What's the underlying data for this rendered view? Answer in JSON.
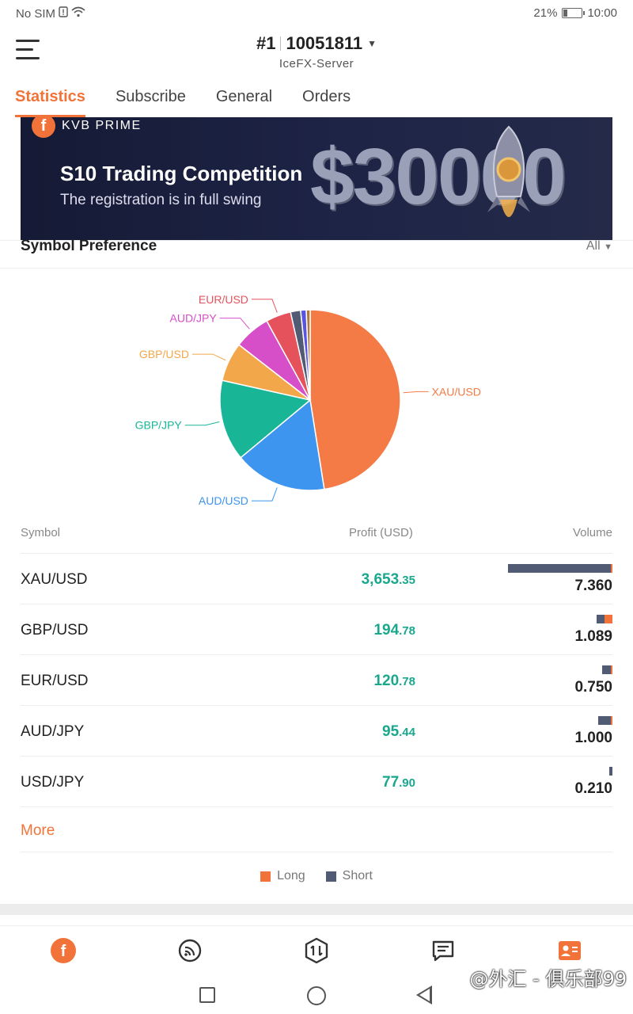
{
  "status_bar": {
    "carrier": "No SIM",
    "battery": "21%",
    "time": "10:00"
  },
  "header": {
    "rank": "#1",
    "account_id": "10051811",
    "server": "IceFX-Server"
  },
  "tabs": [
    {
      "label": "Statistics",
      "active": true
    },
    {
      "label": "Subscribe"
    },
    {
      "label": "General"
    },
    {
      "label": "Orders"
    }
  ],
  "banner": {
    "brand": "KVB PRIME",
    "title": "S10 Trading Competition",
    "subtitle": "The registration is in full swing",
    "amount": "$30000"
  },
  "symbol_preference": {
    "title": "Symbol Preference",
    "filter": "All"
  },
  "chart_data": {
    "type": "pie",
    "title": "",
    "slices": [
      {
        "label": "XAU/USD",
        "value": 47.5,
        "color": "#f47b45"
      },
      {
        "label": "AUD/USD",
        "value": 16.5,
        "color": "#3d95f0"
      },
      {
        "label": "GBP/JPY",
        "value": 14.5,
        "color": "#19b597"
      },
      {
        "label": "GBP/USD",
        "value": 7.0,
        "color": "#f2a84a"
      },
      {
        "label": "AUD/JPY",
        "value": 6.5,
        "color": "#d64fc9"
      },
      {
        "label": "EUR/USD",
        "value": 4.5,
        "color": "#e5525b"
      },
      {
        "label": "",
        "value": 1.8,
        "color": "#515c74"
      },
      {
        "label": "",
        "value": 1.0,
        "color": "#5a55e0"
      },
      {
        "label": "",
        "value": 0.7,
        "color": "#b07a3c"
      }
    ]
  },
  "table": {
    "headers": {
      "symbol": "Symbol",
      "profit": "Profit (USD)",
      "volume": "Volume"
    },
    "rows": [
      {
        "symbol": "XAU/USD",
        "profit_int": "3,653",
        "profit_dec": ".35",
        "volume": "7.360",
        "short_frac": 0.99,
        "long_frac": 0.01,
        "max_frac": 1.0
      },
      {
        "symbol": "GBP/USD",
        "profit_int": "194",
        "profit_dec": ".78",
        "volume": "1.089",
        "short_frac": 0.5,
        "long_frac": 0.5,
        "max_frac": 0.148
      },
      {
        "symbol": "EUR/USD",
        "profit_int": "120",
        "profit_dec": ".78",
        "volume": "0.750",
        "short_frac": 0.9,
        "long_frac": 0.1,
        "max_frac": 0.102
      },
      {
        "symbol": "AUD/JPY",
        "profit_int": "95",
        "profit_dec": ".44",
        "volume": "1.000",
        "short_frac": 0.95,
        "long_frac": 0.05,
        "max_frac": 0.136
      },
      {
        "symbol": "USD/JPY",
        "profit_int": "77",
        "profit_dec": ".90",
        "volume": "0.210",
        "short_frac": 1.0,
        "long_frac": 0.0,
        "max_frac": 0.028
      }
    ]
  },
  "more_label": "More",
  "legend": {
    "long": "Long",
    "short": "Short"
  },
  "colors": {
    "accent": "#f2733a",
    "profit": "#1aa88c",
    "short": "#515c74",
    "long": "#f2733a"
  },
  "bottom_nav": [
    {
      "icon": "home-logo-icon"
    },
    {
      "icon": "signal-icon"
    },
    {
      "icon": "trade-icon"
    },
    {
      "icon": "message-icon"
    },
    {
      "icon": "profile-card-icon"
    }
  ],
  "watermark": "@外汇 - 俱乐部99"
}
